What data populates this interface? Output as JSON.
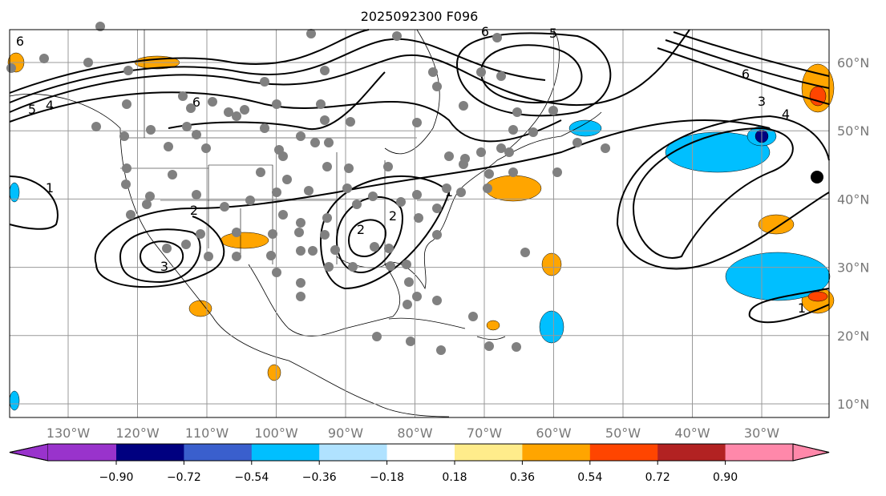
{
  "chart_data": {
    "type": "heatmap",
    "title": "2025092300 F096",
    "lon_ticks": [
      "130°W",
      "120°W",
      "110°W",
      "100°W",
      "90°W",
      "80°W",
      "70°W",
      "60°W",
      "50°W",
      "40°W",
      "30°W"
    ],
    "lat_ticks": [
      "60°N",
      "50°N",
      "40°N",
      "30°N",
      "20°N",
      "10°N"
    ],
    "lon_range": [
      -138,
      -20
    ],
    "lat_range": [
      7,
      65
    ],
    "grid": true,
    "colorbar": {
      "location": "bottom",
      "extend": "both",
      "levels": [
        "−0.90",
        "−0.72",
        "−0.54",
        "−0.36",
        "−0.18",
        "0.18",
        "0.36",
        "0.54",
        "0.72",
        "0.90"
      ],
      "colors": [
        "#9933cc",
        "#000080",
        "#3a5fcd",
        "#00bfff",
        "#b0e2ff",
        "#ffffff",
        "#ffec8b",
        "#ffa500",
        "#ff4500",
        "#b22222",
        "#ff88aa"
      ]
    },
    "contour_labels": [
      "6",
      "5",
      "4",
      "2",
      "3",
      "2",
      "1",
      "2",
      "1",
      "6",
      "5",
      "6",
      "3",
      "4",
      "1",
      "6"
    ],
    "point_color": "#808080"
  }
}
